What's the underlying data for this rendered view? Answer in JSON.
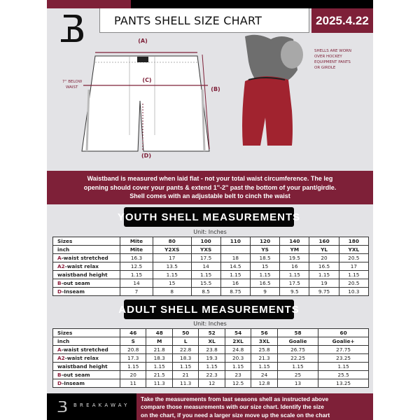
{
  "header": {
    "title": "PANTS SHELL SIZE CHART",
    "date": "2025.4.22",
    "logo": "B"
  },
  "diagram": {
    "label_a": "(A)",
    "label_b": "(B)",
    "label_c": "(C)",
    "label_d": "(D)",
    "below_waist_note": [
      "7'' BELOW",
      "WAIST"
    ],
    "shell_note": [
      "SHELLS ARE WORN",
      "OVER HOCKEY",
      "EQUIPMENT PANTS",
      "OR GIRDLE"
    ]
  },
  "info_band": [
    "Waistband is measured when laid flat - not your total waist circumference. The leg",
    "opening should cover your pants & extend 1''-2'' past the bottom of your pant/girdle.",
    "Shell comes with an adjustable belt to cinch the waist"
  ],
  "youth": {
    "title": "YOUTH SHELL MEASUREMENTS",
    "unit": "Unit: Inches",
    "rows": [
      {
        "letter": "",
        "label": "Sizes",
        "values": [
          "Mite",
          "80",
          "100",
          "110",
          "120",
          "140",
          "160",
          "180"
        ]
      },
      {
        "letter": "",
        "label": "inch",
        "values": [
          "Mite",
          "Y2XS",
          "YXS",
          "",
          "YS",
          "YM",
          "YL",
          "YXL"
        ]
      },
      {
        "letter": "A",
        "label": "-waist stretched",
        "values": [
          "16.3",
          "17",
          "17.5",
          "18",
          "18.5",
          "19.5",
          "20",
          "20.5"
        ]
      },
      {
        "letter": "A2",
        "label": "-waist relax",
        "values": [
          "12.5",
          "13.5",
          "14",
          "14.5",
          "15",
          "16",
          "16.5",
          "17"
        ]
      },
      {
        "letter": "",
        "label": "waistband height",
        "values": [
          "1.15",
          "1.15",
          "1.15",
          "1.15",
          "1.15",
          "1.15",
          "1.15",
          "1.15"
        ]
      },
      {
        "letter": "B",
        "label": "-out seam",
        "values": [
          "14",
          "15",
          "15.5",
          "16",
          "16.5",
          "17.5",
          "19",
          "20.5"
        ]
      },
      {
        "letter": "D",
        "label": "-Inseam",
        "values": [
          "7",
          "8",
          "8.5",
          "8.75",
          "9",
          "9.5",
          "9.75",
          "10.3"
        ]
      }
    ]
  },
  "adult": {
    "title": "ADULT SHELL MEASUREMENTS",
    "unit": "Unit: Inches",
    "rows": [
      {
        "letter": "",
        "label": "Sizes",
        "values": [
          "46",
          "48",
          "50",
          "52",
          "54",
          "56",
          "58",
          "60"
        ]
      },
      {
        "letter": "",
        "label": "inch",
        "values": [
          "S",
          "M",
          "L",
          "XL",
          "2XL",
          "3XL",
          "Goalie",
          "Goalie+"
        ]
      },
      {
        "letter": "A",
        "label": "-waist stretched",
        "values": [
          "20.8",
          "21.8",
          "22.8",
          "23.8",
          "24.8",
          "25.8",
          "26.75",
          "27.75"
        ]
      },
      {
        "letter": "A2",
        "label": "-waist relax",
        "values": [
          "17.3",
          "18.3",
          "18.3",
          "19.3",
          "20.3",
          "21.3",
          "22.25",
          "23.25"
        ]
      },
      {
        "letter": "",
        "label": "waistband height",
        "values": [
          "1.15",
          "1.15",
          "1.15",
          "1.15",
          "1.15",
          "1.15",
          "1.15",
          "1.15"
        ]
      },
      {
        "letter": "B",
        "label": "-out seam",
        "values": [
          "20",
          "21.5",
          "21",
          "22.3",
          "23",
          "24",
          "25",
          "25.5"
        ]
      },
      {
        "letter": "D",
        "label": "-Inseam",
        "values": [
          "11",
          "11.3",
          "11.3",
          "12",
          "12.5",
          "12.8",
          "13",
          "13.25"
        ]
      }
    ]
  },
  "footer": {
    "brand": "BREAKAWAY",
    "instructions": [
      "Take the measurements from last seasons shell as instructed above",
      "compare those measurements  with our size chart. Identify the size",
      "on the chart, if you need a larger size move up the scale on the chart"
    ]
  },
  "colors": {
    "maroon": "#7e2038",
    "black": "#000000",
    "background": "#e3e3e6"
  }
}
